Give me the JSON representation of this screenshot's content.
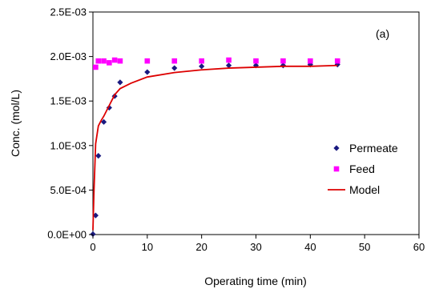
{
  "chart_data": {
    "type": "scatter",
    "panel_label": "(a)",
    "xlabel": "Operating time (min)",
    "ylabel": "Conc. (mol/L)",
    "xlim": [
      0,
      60
    ],
    "ylim": [
      0,
      0.0025
    ],
    "xticks": [
      0,
      10,
      20,
      30,
      40,
      50,
      60
    ],
    "yticks": [
      0,
      0.0005,
      0.001,
      0.0015,
      0.002,
      0.0025
    ],
    "xtick_labels": [
      "0",
      "10",
      "20",
      "30",
      "40",
      "50",
      "60"
    ],
    "ytick_labels": [
      "0.0E+00",
      "5.0E-04",
      "1.0E-03",
      "1.5E-03",
      "2.0E-03",
      "2.5E-03"
    ],
    "grid": false,
    "legend_position": "right",
    "series": [
      {
        "name": "Permeate",
        "kind": "scatter",
        "marker": "diamond",
        "color": "#1a1a80",
        "x": [
          0,
          0.5,
          1,
          2,
          3,
          4,
          5,
          10,
          15,
          20,
          25,
          30,
          35,
          40,
          45
        ],
        "y": [
          5e-06,
          0.000215,
          0.000885,
          0.001265,
          0.001425,
          0.001555,
          0.00171,
          0.001825,
          0.00187,
          0.00189,
          0.0019,
          0.0019,
          0.0019,
          0.00191,
          0.00191
        ]
      },
      {
        "name": "Feed",
        "kind": "scatter",
        "marker": "square",
        "color": "#ff00ff",
        "x": [
          0.5,
          1,
          2,
          3,
          4,
          5,
          10,
          15,
          20,
          25,
          30,
          35,
          40,
          45
        ],
        "y": [
          0.00188,
          0.00195,
          0.00195,
          0.00193,
          0.00196,
          0.00195,
          0.00195,
          0.00195,
          0.00195,
          0.00196,
          0.00195,
          0.00195,
          0.00195,
          0.00195
        ]
      },
      {
        "name": "Model",
        "kind": "line",
        "color": "#dd0000",
        "x": [
          0,
          0.2,
          0.5,
          1,
          1.5,
          2,
          3,
          4,
          5,
          7,
          10,
          15,
          20,
          25,
          30,
          35,
          40,
          45
        ],
        "y": [
          5e-05,
          0.0005,
          0.00102,
          0.00122,
          0.00128,
          0.00133,
          0.00145,
          0.00157,
          0.00164,
          0.0017,
          0.00177,
          0.00182,
          0.00185,
          0.00187,
          0.00188,
          0.00189,
          0.00189,
          0.0019
        ]
      }
    ]
  }
}
